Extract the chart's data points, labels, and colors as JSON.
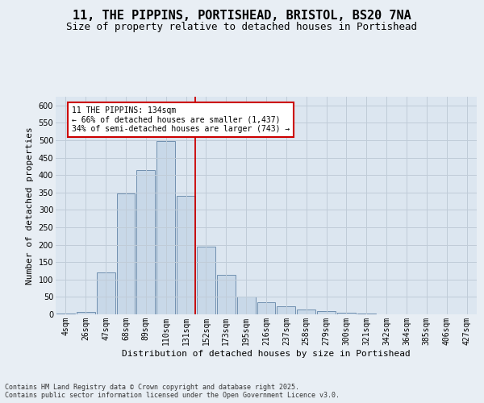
{
  "title_line1": "11, THE PIPPINS, PORTISHEAD, BRISTOL, BS20 7NA",
  "title_line2": "Size of property relative to detached houses in Portishead",
  "xlabel": "Distribution of detached houses by size in Portishead",
  "ylabel": "Number of detached properties",
  "footnote": "Contains HM Land Registry data © Crown copyright and database right 2025.\nContains public sector information licensed under the Open Government Licence v3.0.",
  "categories": [
    "4sqm",
    "26sqm",
    "47sqm",
    "68sqm",
    "89sqm",
    "110sqm",
    "131sqm",
    "152sqm",
    "173sqm",
    "195sqm",
    "216sqm",
    "237sqm",
    "258sqm",
    "279sqm",
    "300sqm",
    "321sqm",
    "342sqm",
    "364sqm",
    "385sqm",
    "406sqm",
    "427sqm"
  ],
  "values": [
    3,
    8,
    120,
    348,
    415,
    498,
    340,
    195,
    113,
    50,
    35,
    23,
    15,
    10,
    5,
    2,
    1,
    0,
    1,
    1,
    1
  ],
  "bar_color": "#c8d8e8",
  "bar_edge_color": "#7090b0",
  "vline_color": "#cc0000",
  "annotation_text": "11 THE PIPPINS: 134sqm\n← 66% of detached houses are smaller (1,437)\n34% of semi-detached houses are larger (743) →",
  "annotation_box_color": "#ffffff",
  "annotation_box_edge": "#cc0000",
  "ylim": [
    0,
    625
  ],
  "yticks": [
    0,
    50,
    100,
    150,
    200,
    250,
    300,
    350,
    400,
    450,
    500,
    550,
    600
  ],
  "grid_color": "#c0ccd8",
  "bg_color": "#e8eef4",
  "plot_bg_color": "#dce6f0",
  "title_fontsize": 11,
  "subtitle_fontsize": 9,
  "ylabel_fontsize": 8,
  "xlabel_fontsize": 8,
  "tick_fontsize": 7,
  "footnote_fontsize": 6
}
